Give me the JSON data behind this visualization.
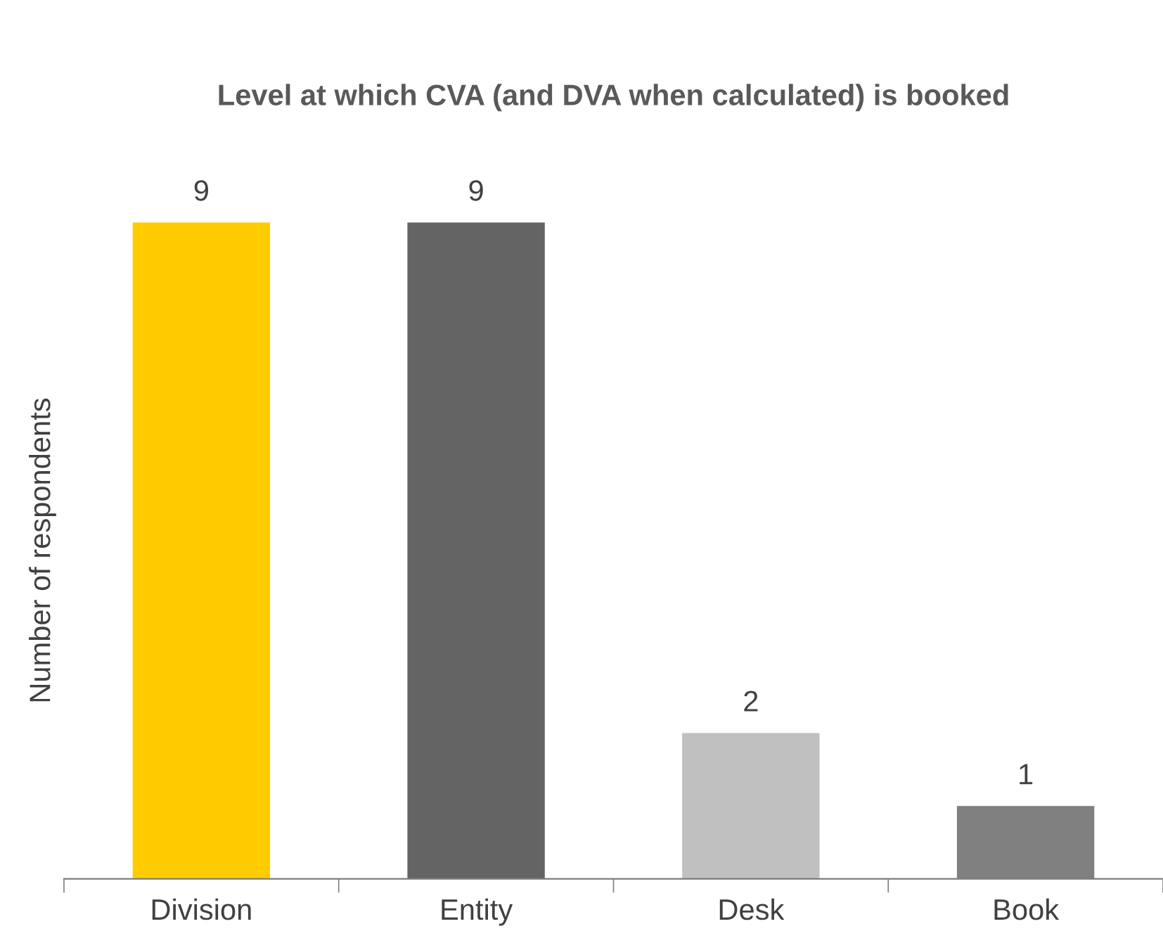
{
  "chart_data": {
    "type": "bar",
    "title": "Level at which CVA (and DVA when calculated) is booked",
    "ylabel": "Number of respondents",
    "categories": [
      "Division",
      "Entity",
      "Desk",
      "Book"
    ],
    "values": [
      9,
      9,
      2,
      1
    ],
    "colors": [
      "#ffcc00",
      "#646464",
      "#c0c0c0",
      "#808080"
    ],
    "data_labels": true,
    "grid": false,
    "legend": false
  }
}
